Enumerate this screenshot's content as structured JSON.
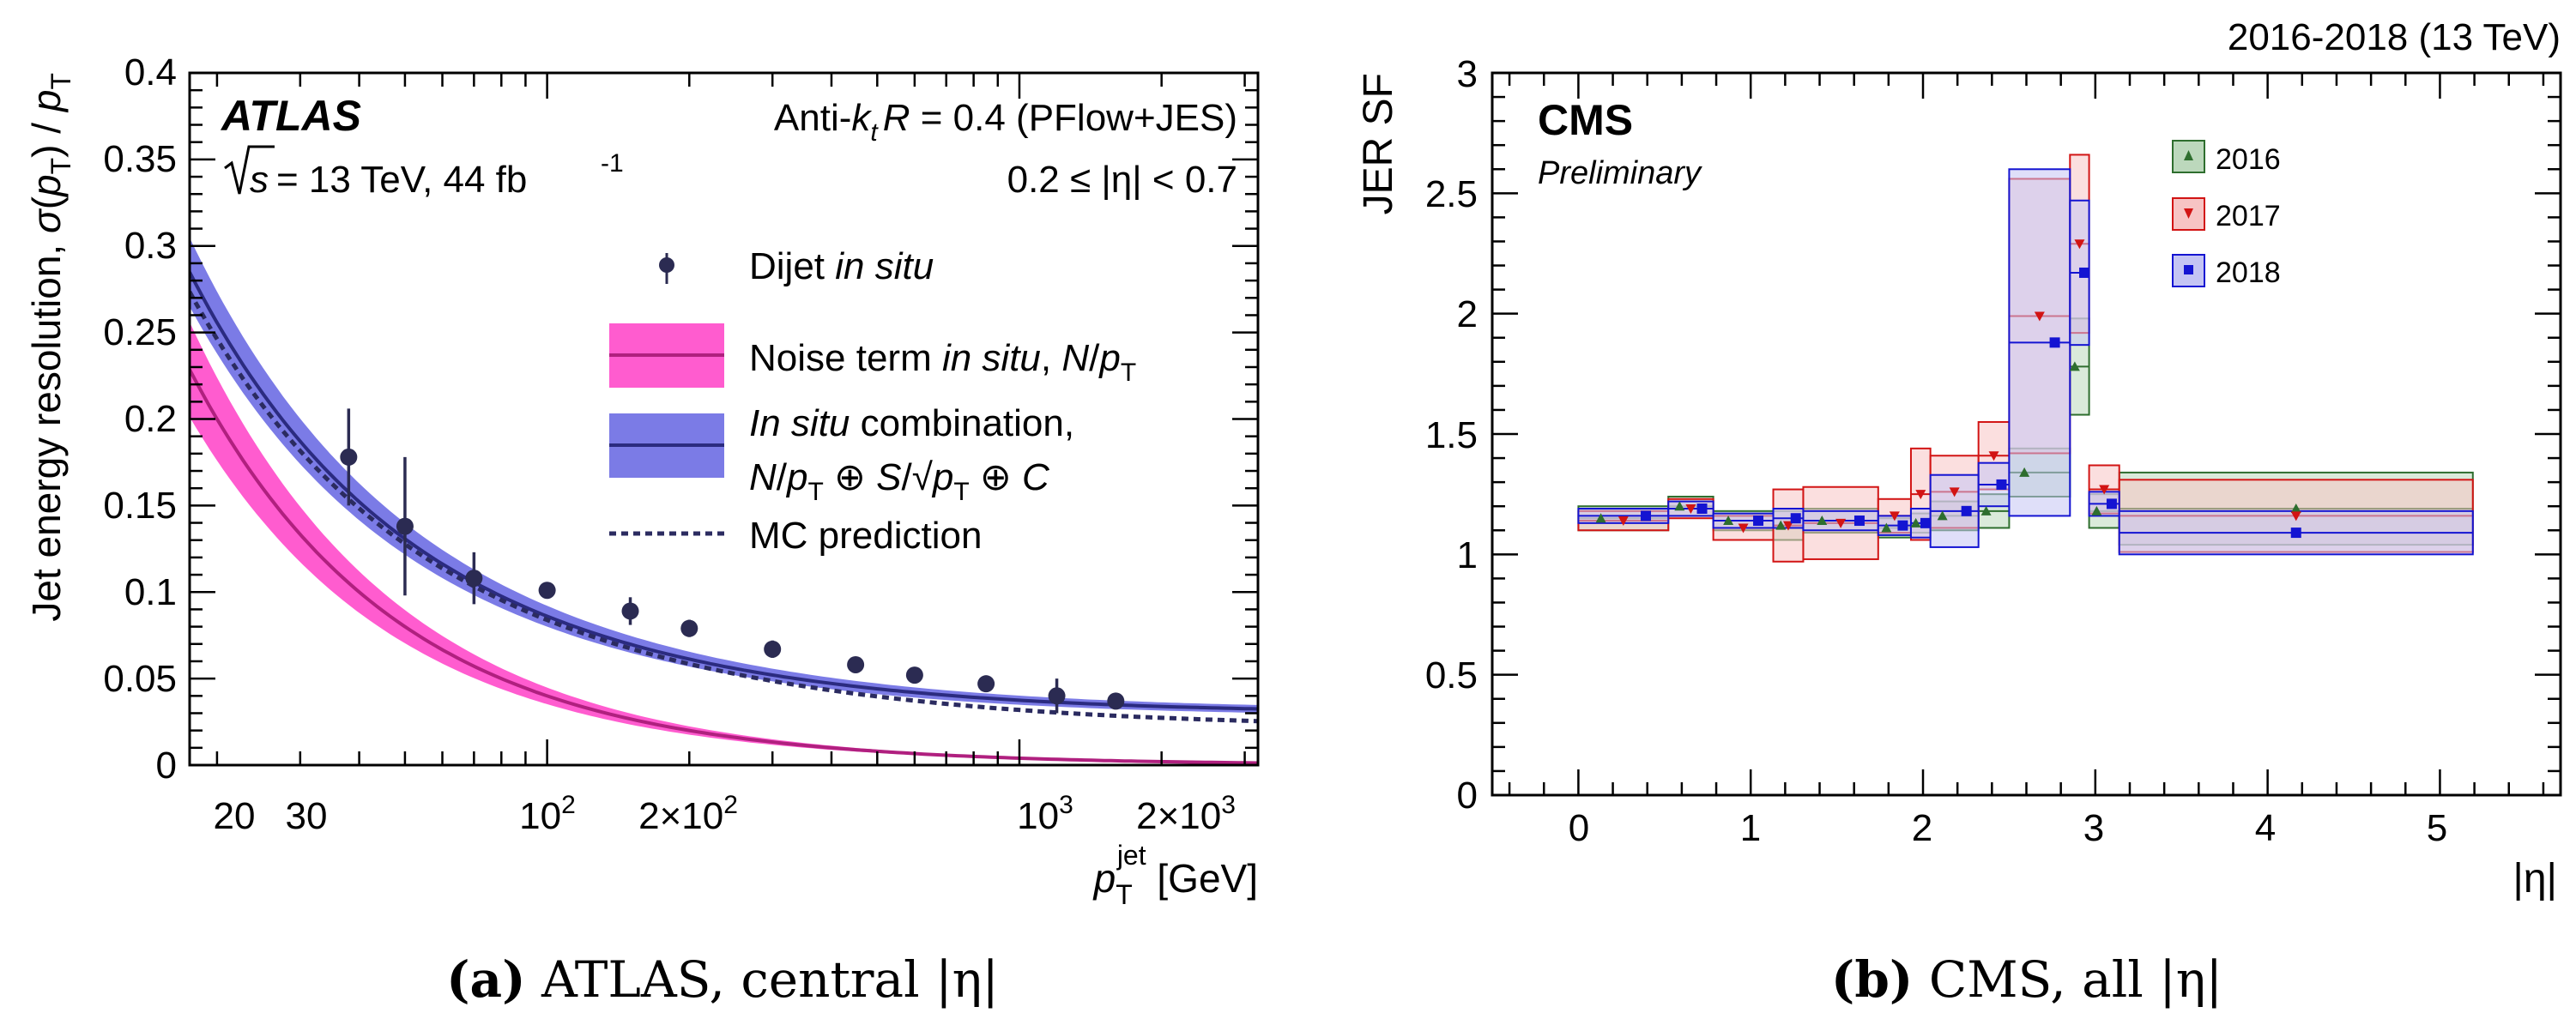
{
  "chart_data": [
    {
      "type": "line",
      "panel": "a",
      "experiment": "ATLAS",
      "title_left": "ATLAS",
      "energy_text": "= 13 TeV, 44 fb",
      "energy_sqrt": "√s",
      "energy_sup": "-1",
      "jet_algo": "Anti-k  R = 0.4 (PFlow+JES)",
      "jet_algo_parts": {
        "pre": "Anti-",
        "k": "k",
        "sub": "t",
        "post": " R = 0.4 (PFlow+JES)"
      },
      "eta_range": "0.2 ≤ |η| < 0.7",
      "ylabel": "Jet energy resolution, σ(p_T) / p_T",
      "xlabel": "p_T^jet [GeV]",
      "xscale": "log",
      "xlim": [
        17.5,
        3200
      ],
      "ylim": [
        0,
        0.4
      ],
      "yticks": [
        "0",
        "0.05",
        "0.1",
        "0.15",
        "0.2",
        "0.25",
        "0.3",
        "0.35",
        "0.4"
      ],
      "xticks": [
        "20",
        "30",
        "10²",
        "2×10²",
        "10³",
        "2×10³"
      ],
      "legend": [
        {
          "label": "Dijet in situ",
          "kind": "points"
        },
        {
          "label": "Noise term in situ, N/p_T",
          "kind": "band",
          "color": "#ff40c8"
        },
        {
          "label": "In situ combination, N/p_T ⊕ S/√p_T ⊕ C",
          "kind": "band",
          "color": "#7070e8"
        },
        {
          "label": "MC prediction",
          "kind": "dashed",
          "color": "#2a2a60"
        }
      ],
      "legend_text": {
        "dijet": "Dijet",
        "in_situ": "in situ",
        "noise": "Noise term",
        "noise_tail": ", N/p",
        "combo_a": "In situ",
        "combo_b": " combination,",
        "combo_line2": "N/p ⊕ S/√p ⊕ C",
        "mc": "MC prediction"
      },
      "dijet_points": [
        {
          "x": 38,
          "y": 0.178,
          "err": 0.028
        },
        {
          "x": 50,
          "y": 0.138,
          "err": 0.04
        },
        {
          "x": 70,
          "y": 0.108,
          "err": 0.015
        },
        {
          "x": 100,
          "y": 0.101,
          "err": 0.004
        },
        {
          "x": 150,
          "y": 0.089,
          "err": 0.008
        },
        {
          "x": 200,
          "y": 0.079,
          "err": 0.005
        },
        {
          "x": 300,
          "y": 0.067,
          "err": 0.005
        },
        {
          "x": 450,
          "y": 0.058,
          "err": 0.004
        },
        {
          "x": 600,
          "y": 0.052,
          "err": 0.004
        },
        {
          "x": 850,
          "y": 0.047,
          "err": 0.004
        },
        {
          "x": 1200,
          "y": 0.04,
          "err": 0.01
        },
        {
          "x": 1600,
          "y": 0.037,
          "err": 0.004
        }
      ],
      "fit_params": {
        "N": 4.0,
        "S": 0.7,
        "C": 0.03
      },
      "mc_params": {
        "N": 3.7,
        "S": 0.72,
        "C": 0.022
      }
    },
    {
      "type": "scatter",
      "panel": "b",
      "experiment": "CMS",
      "title_left": "CMS",
      "subtitle": "Preliminary",
      "top_right": "2016-2018 (13 TeV)",
      "ylabel": "JER SF",
      "xlabel": "|η|",
      "xlim": [
        -0.5,
        5.7
      ],
      "ylim": [
        0,
        3
      ],
      "yticks": [
        "0",
        "0.5",
        "1",
        "1.5",
        "2",
        "2.5",
        "3"
      ],
      "xticks": [
        "0",
        "1",
        "2",
        "3",
        "4",
        "5"
      ],
      "legend": [
        {
          "label": "2016",
          "color": "#2e6e2e",
          "fill": "#bcd8bc",
          "marker": "triangle-up"
        },
        {
          "label": "2017",
          "color": "#d21414",
          "fill": "#f7c4c4",
          "marker": "triangle-down"
        },
        {
          "label": "2018",
          "color": "#1414d2",
          "fill": "#c4c4f4",
          "marker": "square"
        }
      ],
      "eta_bins": [
        [
          0,
          0.522
        ],
        [
          0.522,
          0.783
        ],
        [
          0.783,
          1.131
        ],
        [
          1.131,
          1.305
        ],
        [
          1.305,
          1.74
        ],
        [
          1.74,
          1.93
        ],
        [
          1.93,
          2.043
        ],
        [
          2.043,
          2.322
        ],
        [
          2.322,
          2.5
        ],
        [
          2.5,
          2.853
        ],
        [
          2.853,
          2.964
        ],
        [
          2.964,
          3.139
        ],
        [
          3.139,
          5.191
        ]
      ],
      "series": [
        {
          "name": "2016",
          "values": [
            1.15,
            1.2,
            1.14,
            1.12,
            1.14,
            1.11,
            1.13,
            1.16,
            1.18,
            1.34,
            1.78,
            1.18,
            1.19
          ],
          "err": [
            0.05,
            0.04,
            0.04,
            0.06,
            0.05,
            0.04,
            0.04,
            0.06,
            0.07,
            0.1,
            0.2,
            0.07,
            0.15
          ]
        },
        {
          "name": "2017",
          "values": [
            1.14,
            1.19,
            1.11,
            1.12,
            1.13,
            1.16,
            1.25,
            1.26,
            1.41,
            1.99,
            2.29,
            1.27,
            1.16
          ],
          "err": [
            0.04,
            0.04,
            0.05,
            0.15,
            0.15,
            0.07,
            0.19,
            0.15,
            0.14,
            0.57,
            0.37,
            0.1,
            0.15
          ]
        },
        {
          "name": "2018",
          "values": [
            1.16,
            1.19,
            1.14,
            1.15,
            1.14,
            1.12,
            1.13,
            1.18,
            1.29,
            1.88,
            2.17,
            1.21,
            1.09
          ],
          "err": [
            0.03,
            0.03,
            0.03,
            0.04,
            0.04,
            0.04,
            0.06,
            0.15,
            0.09,
            0.72,
            0.3,
            0.05,
            0.09
          ]
        }
      ]
    }
  ],
  "captions": {
    "a_label": "(a)",
    "a_text": "ATLAS, central |η|",
    "b_label": "(b)",
    "b_text": "CMS, all |η|"
  }
}
